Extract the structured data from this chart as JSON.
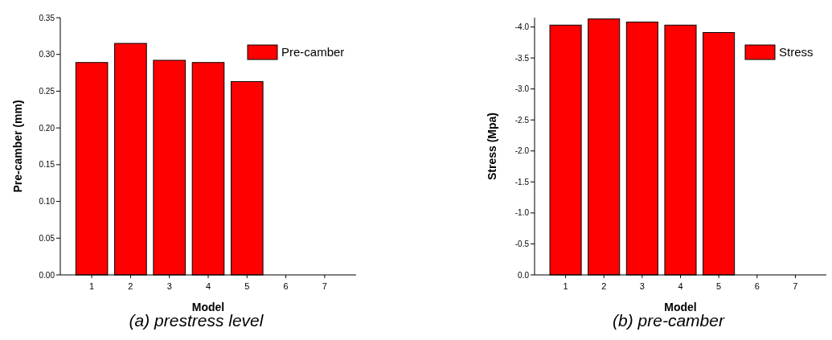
{
  "chart_data": [
    {
      "type": "bar",
      "title": "(a) prestress level",
      "xlabel": "Model",
      "ylabel": "Pre-camber (mm)",
      "categories": [
        "1",
        "2",
        "3",
        "4",
        "5",
        "6",
        "7"
      ],
      "series": [
        {
          "name": "Pre-camber",
          "color": "#ff0000",
          "values": [
            0.289,
            0.315,
            0.292,
            0.289,
            0.263,
            null,
            null
          ]
        }
      ],
      "ylim": [
        0,
        0.35
      ],
      "yticks": [
        {
          "value": 0,
          "label": "0.00"
        },
        {
          "value": 0.05,
          "label": "0.05"
        },
        {
          "value": 0.1,
          "label": "0.10"
        },
        {
          "value": 0.15,
          "label": "0.15"
        },
        {
          "value": 0.2,
          "label": "0.20"
        },
        {
          "value": 0.25,
          "label": "0.25"
        },
        {
          "value": 0.3,
          "label": "0.30"
        },
        {
          "value": 0.35,
          "label": "0.35"
        }
      ],
      "legend": "top right"
    },
    {
      "type": "bar",
      "title": "(b) pre-camber",
      "xlabel": "Model",
      "ylabel": "Stress (Mpa)",
      "categories": [
        "1",
        "2",
        "3",
        "4",
        "5",
        "6",
        "7"
      ],
      "series": [
        {
          "name": "Stress",
          "color": "#ff0000",
          "values": [
            -4.03,
            -4.13,
            -4.08,
            -4.03,
            -3.91,
            null,
            null
          ]
        }
      ],
      "ylim": [
        0,
        -4.15
      ],
      "yticks": [
        {
          "value": 0,
          "label": "0.0"
        },
        {
          "value": -0.5,
          "label": "-0.5"
        },
        {
          "value": -1,
          "label": "-1.0"
        },
        {
          "value": -1.5,
          "label": "-1.5"
        },
        {
          "value": -2,
          "label": "-2.0"
        },
        {
          "value": -2.5,
          "label": "-2.5"
        },
        {
          "value": -3,
          "label": "-3.0"
        },
        {
          "value": -3.5,
          "label": "-3.5"
        },
        {
          "value": -4,
          "label": "-4.0"
        }
      ],
      "legend": "top right"
    }
  ]
}
